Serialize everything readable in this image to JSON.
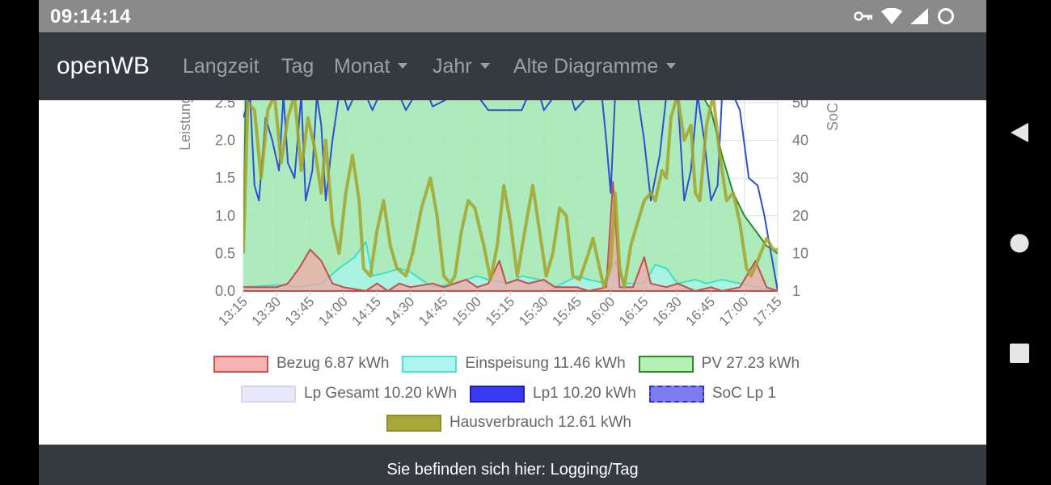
{
  "statusbar": {
    "time": "09:14:14"
  },
  "navbar": {
    "brand": "openWB",
    "items": [
      "Langzeit",
      "Tag",
      "Monat",
      "Jahr",
      "Alte Diagramme"
    ]
  },
  "footer": {
    "text": "Sie befinden sich hier: Logging/Tag"
  },
  "chart_data": {
    "type": "area",
    "y_axis_left": {
      "label": "Leistung [kW]",
      "ticks": [
        "0.0",
        "0.5",
        "1.0",
        "1.5",
        "2.0",
        "2.5"
      ],
      "range": [
        0,
        2.5
      ]
    },
    "y_axis_right": {
      "label": "SoC [%]",
      "ticks": [
        "1",
        "10",
        "20",
        "30",
        "40",
        "50"
      ],
      "range": [
        0,
        50
      ]
    },
    "x_labels": [
      "13:15",
      "13:30",
      "13:45",
      "14:00",
      "14:15",
      "14:30",
      "14:45",
      "15:00",
      "15:15",
      "15:30",
      "15:45",
      "16:00",
      "16:15",
      "16:30",
      "16:45",
      "17:00",
      "17:15"
    ],
    "x_range_minutes": [
      795,
      1035
    ],
    "grid": true,
    "legend_position": "bottom",
    "series": [
      {
        "name": "PV 27.23 kWh",
        "fill": "#a0e8b0",
        "stroke": "#2d8a2d",
        "points": [
          [
            795,
            0.5
          ],
          [
            796,
            2.6
          ],
          [
            820,
            2.6
          ],
          [
            900,
            2.6
          ],
          [
            1001,
            2.6
          ],
          [
            1005,
            2.4
          ],
          [
            1010,
            1.8
          ],
          [
            1015,
            1.3
          ],
          [
            1020,
            1.0
          ],
          [
            1025,
            0.8
          ],
          [
            1030,
            0.6
          ],
          [
            1035,
            0.5
          ]
        ]
      },
      {
        "name": "Einspeisung 11.46 kWh",
        "fill": "#a8f5ec",
        "stroke": "#3fe0c5",
        "points": [
          [
            795,
            0.05
          ],
          [
            810,
            0.08
          ],
          [
            820,
            0.05
          ],
          [
            830,
            0.1
          ],
          [
            838,
            0.3
          ],
          [
            845,
            0.45
          ],
          [
            850,
            0.65
          ],
          [
            853,
            0.2
          ],
          [
            860,
            0.25
          ],
          [
            865,
            0.3
          ],
          [
            870,
            0.25
          ],
          [
            875,
            0.15
          ],
          [
            880,
            0.05
          ],
          [
            890,
            0.1
          ],
          [
            900,
            0.2
          ],
          [
            905,
            0.15
          ],
          [
            915,
            0.1
          ],
          [
            920,
            0.2
          ],
          [
            928,
            0.15
          ],
          [
            935,
            0.05
          ],
          [
            945,
            0.2
          ],
          [
            950,
            0.15
          ],
          [
            958,
            0.1
          ],
          [
            962,
            0.4
          ],
          [
            966,
            0.1
          ],
          [
            975,
            0.1
          ],
          [
            980,
            0.35
          ],
          [
            985,
            0.3
          ],
          [
            990,
            0.1
          ],
          [
            998,
            0.15
          ],
          [
            1003,
            0.1
          ],
          [
            1010,
            0.15
          ],
          [
            1018,
            0.1
          ],
          [
            1025,
            0.05
          ],
          [
            1035,
            0.0
          ]
        ]
      },
      {
        "name": "Bezug 6.87 kWh",
        "fill": "#f2a8a8",
        "stroke": "#c0504d",
        "points": [
          [
            795,
            0.05
          ],
          [
            810,
            0.05
          ],
          [
            815,
            0.1
          ],
          [
            820,
            0.3
          ],
          [
            825,
            0.55
          ],
          [
            830,
            0.4
          ],
          [
            835,
            0.1
          ],
          [
            840,
            0.05
          ],
          [
            850,
            0.0
          ],
          [
            855,
            0.1
          ],
          [
            860,
            0.0
          ],
          [
            865,
            0.1
          ],
          [
            870,
            0.05
          ],
          [
            880,
            0.1
          ],
          [
            885,
            0.05
          ],
          [
            890,
            0.1
          ],
          [
            895,
            0.15
          ],
          [
            900,
            0.05
          ],
          [
            905,
            0.1
          ],
          [
            910,
            0.4
          ],
          [
            913,
            0.1
          ],
          [
            918,
            0.15
          ],
          [
            923,
            0.1
          ],
          [
            930,
            0.15
          ],
          [
            935,
            0.05
          ],
          [
            945,
            0.05
          ],
          [
            950,
            0.0
          ],
          [
            958,
            0.05
          ],
          [
            961,
            1.45
          ],
          [
            964,
            0.05
          ],
          [
            970,
            0.05
          ],
          [
            975,
            0.45
          ],
          [
            978,
            0.1
          ],
          [
            985,
            0.05
          ],
          [
            990,
            0.1
          ],
          [
            998,
            0.0
          ],
          [
            1005,
            0.05
          ],
          [
            1010,
            0.0
          ],
          [
            1018,
            0.05
          ],
          [
            1025,
            0.4
          ],
          [
            1030,
            0.05
          ],
          [
            1035,
            0.0
          ]
        ]
      },
      {
        "name": "Lp Gesamt 10.20 kWh",
        "fill": "#e6e6fa",
        "stroke": "#c8c8ee",
        "points": []
      },
      {
        "name": "Lp1 10.20 kWh",
        "fill": "none",
        "stroke": "#2e4fcf",
        "points": [
          [
            795,
            2.3
          ],
          [
            798,
            2.6
          ],
          [
            800,
            1.4
          ],
          [
            802,
            1.2
          ],
          [
            805,
            2.3
          ],
          [
            808,
            2.0
          ],
          [
            811,
            1.6
          ],
          [
            813,
            2.6
          ],
          [
            815,
            1.7
          ],
          [
            818,
            1.5
          ],
          [
            821,
            2.6
          ],
          [
            823,
            1.2
          ],
          [
            826,
            1.6
          ],
          [
            828,
            2.6
          ],
          [
            830,
            2.2
          ],
          [
            832,
            1.2
          ],
          [
            835,
            2.0
          ],
          [
            838,
            2.6
          ],
          [
            840,
            2.6
          ],
          [
            842,
            2.4
          ],
          [
            845,
            2.6
          ],
          [
            850,
            2.6
          ],
          [
            853,
            2.4
          ],
          [
            856,
            2.6
          ],
          [
            865,
            2.6
          ],
          [
            868,
            2.4
          ],
          [
            872,
            2.6
          ],
          [
            878,
            2.6
          ],
          [
            880,
            2.45
          ],
          [
            890,
            2.6
          ],
          [
            900,
            2.6
          ],
          [
            905,
            2.4
          ],
          [
            920,
            2.4
          ],
          [
            923,
            2.6
          ],
          [
            928,
            2.6
          ],
          [
            930,
            2.4
          ],
          [
            935,
            2.6
          ],
          [
            942,
            2.6
          ],
          [
            944,
            2.4
          ],
          [
            950,
            2.6
          ],
          [
            956,
            2.6
          ],
          [
            958,
            2.0
          ],
          [
            960,
            1.3
          ],
          [
            962,
            2.6
          ],
          [
            972,
            2.6
          ],
          [
            975,
            2.0
          ],
          [
            978,
            1.2
          ],
          [
            982,
            1.8
          ],
          [
            985,
            2.6
          ],
          [
            990,
            2.6
          ],
          [
            993,
            1.2
          ],
          [
            996,
            1.6
          ],
          [
            999,
            2.6
          ],
          [
            1002,
            2.0
          ],
          [
            1005,
            1.2
          ],
          [
            1008,
            1.4
          ],
          [
            1010,
            2.6
          ],
          [
            1015,
            2.6
          ],
          [
            1018,
            2.4
          ],
          [
            1022,
            1.5
          ],
          [
            1026,
            1.4
          ],
          [
            1029,
            1.0
          ],
          [
            1032,
            0.5
          ],
          [
            1035,
            0.0
          ]
        ]
      },
      {
        "name": "SoC Lp 1",
        "fill": "none",
        "stroke": "#5a5ae8",
        "points": []
      },
      {
        "name": "Hausverbrauch 12.61 kWh",
        "fill": "none",
        "stroke": "#a3a52b",
        "points": [
          [
            795,
            0.5
          ],
          [
            797,
            2.5
          ],
          [
            800,
            2.4
          ],
          [
            803,
            1.5
          ],
          [
            806,
            2.4
          ],
          [
            809,
            2.6
          ],
          [
            812,
            1.7
          ],
          [
            815,
            2.3
          ],
          [
            818,
            2.6
          ],
          [
            821,
            1.6
          ],
          [
            824,
            2.3
          ],
          [
            827,
            1.9
          ],
          [
            830,
            1.3
          ],
          [
            832,
            2.0
          ],
          [
            835,
            0.9
          ],
          [
            838,
            0.5
          ],
          [
            841,
            1.3
          ],
          [
            844,
            1.8
          ],
          [
            847,
            1.2
          ],
          [
            849,
            0.3
          ],
          [
            852,
            0.2
          ],
          [
            855,
            0.8
          ],
          [
            858,
            1.2
          ],
          [
            861,
            0.6
          ],
          [
            864,
            0.3
          ],
          [
            868,
            0.2
          ],
          [
            871,
            0.5
          ],
          [
            875,
            1.1
          ],
          [
            879,
            1.5
          ],
          [
            882,
            1.0
          ],
          [
            885,
            0.2
          ],
          [
            888,
            0.1
          ],
          [
            890,
            0.2
          ],
          [
            893,
            0.8
          ],
          [
            896,
            1.2
          ],
          [
            899,
            1.1
          ],
          [
            903,
            0.6
          ],
          [
            906,
            0.15
          ],
          [
            909,
            0.6
          ],
          [
            912,
            1.4
          ],
          [
            915,
            0.9
          ],
          [
            918,
            0.2
          ],
          [
            922,
            0.9
          ],
          [
            925,
            1.4
          ],
          [
            928,
            0.8
          ],
          [
            931,
            0.2
          ],
          [
            934,
            0.5
          ],
          [
            937,
            1.1
          ],
          [
            940,
            1.0
          ],
          [
            943,
            0.2
          ],
          [
            946,
            0.15
          ],
          [
            950,
            0.5
          ],
          [
            952,
            0.7
          ],
          [
            955,
            0.3
          ],
          [
            957,
            0.05
          ],
          [
            960,
            0.35
          ],
          [
            962,
            1.3
          ],
          [
            964,
            0.3
          ],
          [
            966,
            0.05
          ],
          [
            969,
            0.6
          ],
          [
            972,
            0.9
          ],
          [
            975,
            1.2
          ],
          [
            978,
            1.3
          ],
          [
            980,
            1.2
          ],
          [
            983,
            1.6
          ],
          [
            985,
            1.5
          ],
          [
            987,
            2.3
          ],
          [
            990,
            2.6
          ],
          [
            993,
            2.0
          ],
          [
            996,
            2.2
          ],
          [
            998,
            1.3
          ],
          [
            1000,
            1.2
          ],
          [
            1003,
            2.2
          ],
          [
            1006,
            2.6
          ],
          [
            1009,
            1.8
          ],
          [
            1012,
            1.2
          ],
          [
            1015,
            1.3
          ],
          [
            1018,
            0.9
          ],
          [
            1021,
            0.3
          ],
          [
            1023,
            0.2
          ],
          [
            1026,
            0.4
          ],
          [
            1030,
            0.7
          ],
          [
            1033,
            0.55
          ],
          [
            1035,
            0.55
          ]
        ]
      }
    ]
  }
}
